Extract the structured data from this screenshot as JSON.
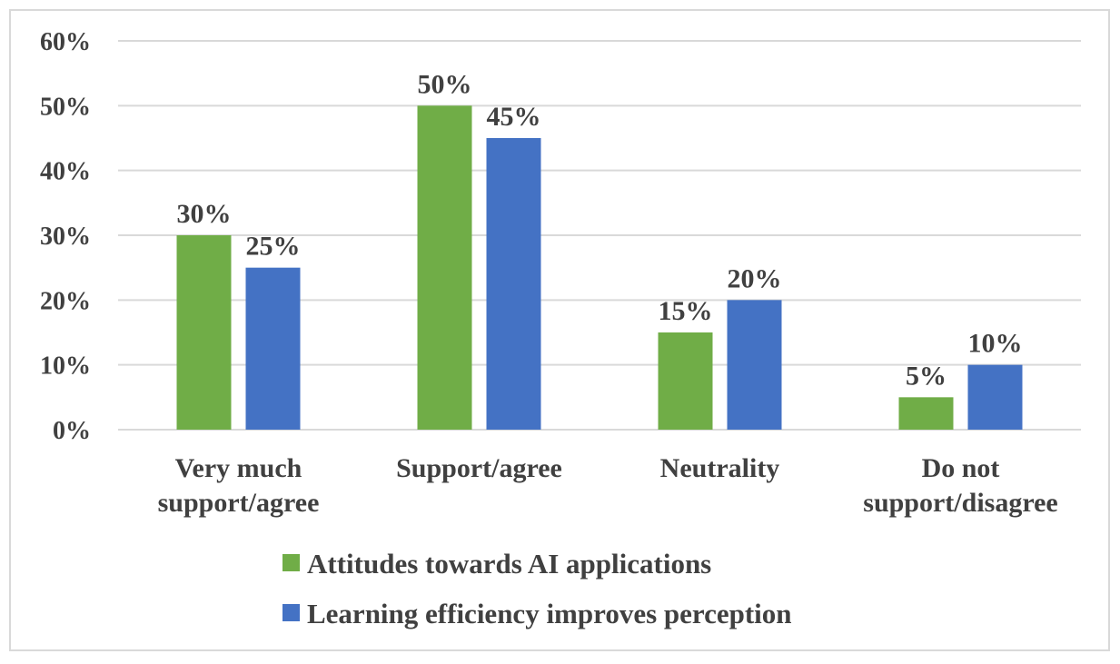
{
  "chart_data": {
    "type": "bar",
    "categories": [
      [
        "Very much",
        "support/agree"
      ],
      [
        "Support/agree"
      ],
      [
        "Neutrality"
      ],
      [
        "Do not",
        "support/disagree"
      ]
    ],
    "series": [
      {
        "name": "Attitudes towards AI applications",
        "values": [
          30,
          50,
          15,
          5
        ],
        "color": "#70ad47"
      },
      {
        "name": "Learning efficiency improves perception",
        "values": [
          25,
          45,
          20,
          10
        ],
        "color": "#4472c4"
      }
    ],
    "ylim": [
      0,
      60
    ],
    "yticks": [
      0,
      10,
      20,
      30,
      40,
      50,
      60
    ],
    "value_suffix": "%",
    "gridlines": true,
    "gridline_color": "#d9d9d9",
    "legend_position": "bottom"
  }
}
